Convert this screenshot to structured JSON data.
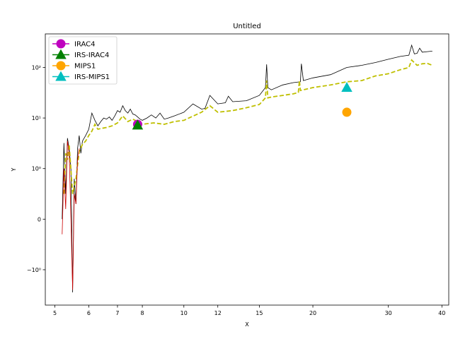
{
  "chart_data": {
    "type": "line",
    "title": "Untitled",
    "xlabel": "X",
    "ylabel": "Y",
    "x_scale": "log",
    "y_scale": "symlog",
    "xlim": [
      4.75,
      41.5
    ],
    "ylim": [
      -5.0,
      460
    ],
    "x_ticks": [
      {
        "value": 5,
        "label": "5"
      },
      {
        "value": 6,
        "label": "6"
      },
      {
        "value": 7,
        "label": "7"
      },
      {
        "value": 8,
        "label": "8"
      },
      {
        "value": 10,
        "label": "10"
      },
      {
        "value": 12,
        "label": "12"
      },
      {
        "value": 15,
        "label": "15"
      },
      {
        "value": 20,
        "label": "20"
      },
      {
        "value": 30,
        "label": "30"
      },
      {
        "value": 40,
        "label": "40"
      }
    ],
    "y_ticks": [
      {
        "value": -1,
        "label": "−10⁰"
      },
      {
        "value": 0,
        "label": "0"
      },
      {
        "value": 1,
        "label": "10⁰"
      },
      {
        "value": 10,
        "label": "10¹"
      },
      {
        "value": 100,
        "label": "10²"
      }
    ],
    "legend_position": "top-left",
    "legend": [
      {
        "label": "IRAC4",
        "color": "#bf00bf",
        "marker": "circle"
      },
      {
        "label": "IRS-IRAC4",
        "color": "#008000",
        "marker": "triangle"
      },
      {
        "label": "MIPS1",
        "color": "#ffa500",
        "marker": "circle"
      },
      {
        "label": "IRS-MIPS1",
        "color": "#00bfbf",
        "marker": "triangle"
      }
    ],
    "series": [
      {
        "style": "solid",
        "color": "#000000",
        "x": [
          5.2,
          5.25,
          5.3,
          5.35,
          5.4,
          5.45,
          5.5,
          5.55,
          5.6,
          5.65,
          5.7,
          5.75,
          5.8,
          5.9,
          6.0,
          6.1,
          6.2,
          6.3,
          6.4,
          6.5,
          6.6,
          6.7,
          6.8,
          6.9,
          7.0,
          7.1,
          7.2,
          7.3,
          7.4,
          7.5,
          7.6,
          7.7,
          7.8,
          7.9,
          8.0,
          8.2,
          8.4,
          8.6,
          8.8,
          9.0,
          9.2,
          9.5,
          10.0,
          10.5,
          11.0,
          11.2,
          11.5,
          12.0,
          12.5,
          12.7,
          13.0,
          14.0,
          15.0,
          15.5,
          15.6,
          15.7,
          16.0,
          17.0,
          18.0,
          18.7,
          18.8,
          19.0,
          20.0,
          22.0,
          24.0,
          26.0,
          28.0,
          30.0,
          32.0,
          33.5,
          34.0,
          34.5,
          35.0,
          35.5,
          36.0,
          37.0,
          38.0
        ],
        "y": [
          0,
          3.2,
          0.5,
          4.0,
          2.5,
          1.0,
          -2.8,
          0.8,
          0.3,
          2.5,
          4.5,
          2.0,
          3.5,
          4.5,
          6.0,
          12.5,
          9.0,
          7.0,
          8.5,
          10.0,
          9.5,
          10.5,
          9.0,
          11.0,
          14.0,
          13.0,
          17.5,
          14.0,
          12.5,
          15.0,
          12.0,
          11.5,
          10.5,
          9.5,
          9.0,
          10.0,
          11.5,
          10.0,
          12.5,
          9.5,
          10.0,
          11.0,
          13.0,
          19.0,
          15.0,
          15.5,
          28.0,
          19.0,
          20.0,
          27.0,
          21.0,
          22.0,
          28.0,
          40.0,
          115.0,
          40.0,
          36.0,
          45.0,
          50.0,
          52.0,
          118.0,
          55.0,
          62.0,
          72.0,
          100.0,
          110.0,
          125.0,
          145.0,
          165.0,
          175.0,
          275.0,
          185.0,
          190.0,
          240.0,
          200.0,
          205.0,
          210.0
        ]
      },
      {
        "style": "dashed",
        "color": "#bfbf00",
        "x": [
          5.25,
          5.3,
          5.35,
          5.4,
          5.5,
          5.6,
          5.7,
          5.8,
          5.9,
          6.0,
          6.1,
          6.2,
          6.3,
          6.4,
          6.6,
          6.8,
          7.0,
          7.2,
          7.4,
          7.6,
          7.8,
          8.0,
          8.5,
          9.0,
          9.5,
          10.0,
          11.0,
          11.5,
          12.0,
          13.0,
          14.0,
          15.0,
          15.5,
          15.6,
          15.7,
          16.0,
          17.0,
          18.0,
          18.5,
          18.6,
          18.7,
          19.0,
          20.0,
          22.0,
          24.0,
          26.0,
          28.0,
          30.0,
          32.0,
          33.5,
          34.0,
          35.0,
          36.0,
          37.0,
          38.0
        ],
        "y": [
          0.5,
          2.0,
          1.5,
          3.0,
          0.5,
          0.8,
          2.2,
          3.0,
          3.5,
          4.5,
          5.5,
          7.5,
          6.0,
          6.2,
          6.5,
          7.0,
          8.0,
          11.0,
          8.5,
          9.5,
          8.5,
          7.5,
          8.0,
          7.5,
          8.5,
          9.0,
          13.0,
          17.5,
          13.0,
          14.0,
          16.0,
          18.5,
          25.0,
          55.0,
          25.0,
          26.0,
          28.0,
          30.0,
          32.0,
          55.0,
          35.0,
          36.0,
          40.0,
          45.0,
          52.0,
          55.0,
          68.0,
          75.0,
          90.0,
          100.0,
          140.0,
          110.0,
          118.0,
          120.0,
          110.0
        ]
      },
      {
        "style": "solid",
        "color": "#cc0000",
        "x": [
          5.2,
          5.25,
          5.3,
          5.35,
          5.4,
          5.45,
          5.5,
          5.55,
          5.6,
          5.65,
          5.7
        ],
        "y": [
          -0.3,
          1.0,
          0.2,
          3.5,
          2.0,
          0.0,
          -2.5,
          0.5,
          0.3,
          1.5,
          2.5
        ]
      }
    ],
    "points": [
      {
        "name": "IRAC4",
        "x": 7.8,
        "y": 7.5,
        "color": "#bf00bf",
        "marker": "circle"
      },
      {
        "name": "IRS-IRAC4",
        "x": 7.8,
        "y": 7.2,
        "color": "#008000",
        "marker": "triangle"
      },
      {
        "name": "MIPS1",
        "x": 24.0,
        "y": 13.0,
        "color": "#ffa500",
        "marker": "circle"
      },
      {
        "name": "IRS-MIPS1",
        "x": 24.0,
        "y": 40.0,
        "color": "#00bfbf",
        "marker": "triangle"
      }
    ]
  }
}
